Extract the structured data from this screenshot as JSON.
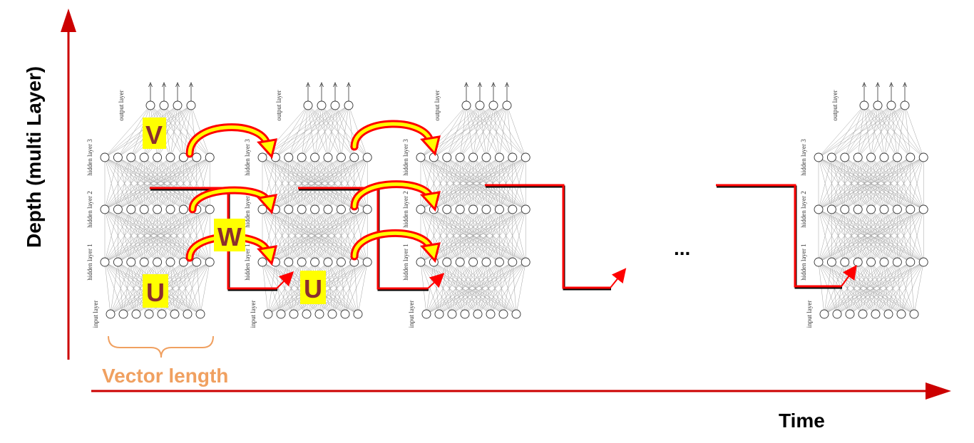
{
  "axes": {
    "y_label": "Depth (multi Layer)",
    "x_label": "Time",
    "color": "#cc0000"
  },
  "layer_labels": {
    "output": "output layer",
    "hidden3": "hidden layer 3",
    "hidden2": "hidden layer 2",
    "hidden1": "hidden layer 1",
    "input": "input layer"
  },
  "weights": {
    "v": "V",
    "w": "W",
    "u1": "U",
    "u2": "U"
  },
  "brace": {
    "label": "Vector length",
    "color": "#f0a060"
  },
  "ellipsis": "...",
  "colors": {
    "recurrence": "#ff0000",
    "arc_fill": "#ffff00",
    "label_box": "#ffff00",
    "node": "#ffffff"
  }
}
